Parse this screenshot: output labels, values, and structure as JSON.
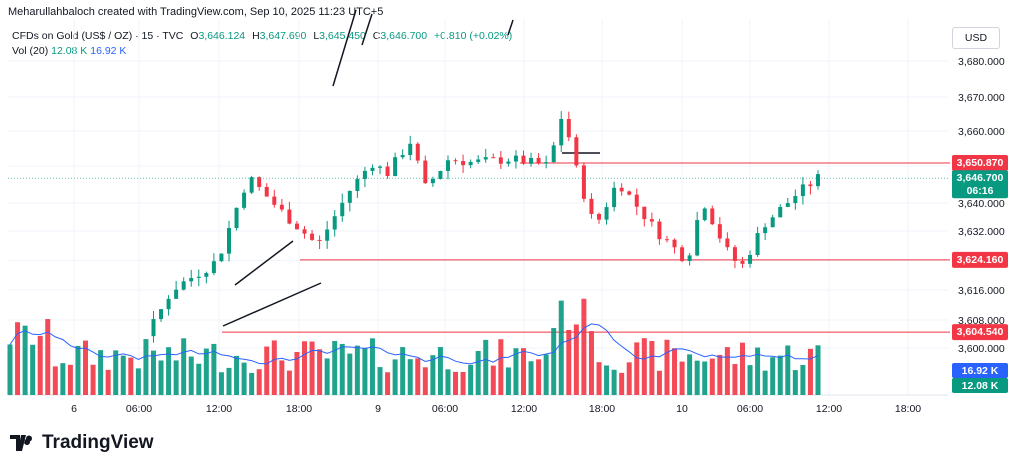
{
  "header": {
    "author_line": "Meharullahbaloch created with TradingView.com, Sep 10, 2025 11:23 UTC+5"
  },
  "legend": {
    "symbol": "CFDs on Gold (US$ / OZ) · 15 · TVC",
    "open_label": "O",
    "open": "3,646.124",
    "high_label": "H",
    "high": "3,647.690",
    "low_label": "L",
    "low": "3,645.450",
    "close_label": "C",
    "close": "3,646.700",
    "change": "+0.810 (+0.02%)"
  },
  "volume_legend": {
    "label": "Vol (20)",
    "value": "12.08 K",
    "ma": "16.92 K"
  },
  "currency": "USD",
  "brand": {
    "name": "TradingView"
  },
  "colors": {
    "up": "#089981",
    "down": "#f23645",
    "ma": "#2962ff",
    "level": "#f23645",
    "grid": "#f0f3fa"
  },
  "chart_data": {
    "type": "candlestick",
    "interval": "15",
    "y_ticks": [
      "3,600.000",
      "3,608.000",
      "3,616.000",
      "3,624.000",
      "3,632.000",
      "3,640.000",
      "3,650.000",
      "3,660.000",
      "3,670.000",
      "3,680.000"
    ],
    "x_ticks": [
      "6",
      "06:00",
      "12:00",
      "18:00",
      "9",
      "06:00",
      "12:00",
      "18:00",
      "10",
      "06:00",
      "12:00",
      "18:00"
    ],
    "price_path": [
      {
        "t": 0,
        "p": 3598
      },
      {
        "t": 12,
        "p": 3597
      },
      {
        "t": 18,
        "p": 3604.5
      },
      {
        "t": 21,
        "p": 3616
      },
      {
        "t": 27,
        "p": 3624
      },
      {
        "t": 30,
        "p": 3642
      },
      {
        "t": 31,
        "p": 3647
      },
      {
        "t": 36,
        "p": 3636
      },
      {
        "t": 40,
        "p": 3628
      },
      {
        "t": 44,
        "p": 3643
      },
      {
        "t": 47,
        "p": 3651
      },
      {
        "t": 49,
        "p": 3648
      },
      {
        "t": 52,
        "p": 3657
      },
      {
        "t": 54,
        "p": 3644
      },
      {
        "t": 57,
        "p": 3652
      },
      {
        "t": 60,
        "p": 3651
      },
      {
        "t": 65,
        "p": 3652
      },
      {
        "t": 70,
        "p": 3650
      },
      {
        "t": 72,
        "p": 3667
      },
      {
        "t": 73,
        "p": 3653
      },
      {
        "t": 76,
        "p": 3633
      },
      {
        "t": 79,
        "p": 3646
      },
      {
        "t": 84,
        "p": 3632
      },
      {
        "t": 88,
        "p": 3624
      },
      {
        "t": 90,
        "p": 3641
      },
      {
        "t": 93,
        "p": 3627
      },
      {
        "t": 95,
        "p": 3622
      },
      {
        "t": 98,
        "p": 3634
      },
      {
        "t": 102,
        "p": 3642
      },
      {
        "t": 105,
        "p": 3646.7
      }
    ],
    "levels": [
      {
        "label": "3,650.870",
        "value": 3650.87
      },
      {
        "label": "3,624.160",
        "value": 3624.16
      },
      {
        "label": "3,604.540",
        "value": 3604.54
      }
    ],
    "last_price": {
      "label": "3,646.700",
      "countdown": "06:16",
      "value": 3646.7
    },
    "volume_labels": {
      "ma": "16.92 K",
      "current": "12.08 K"
    }
  }
}
